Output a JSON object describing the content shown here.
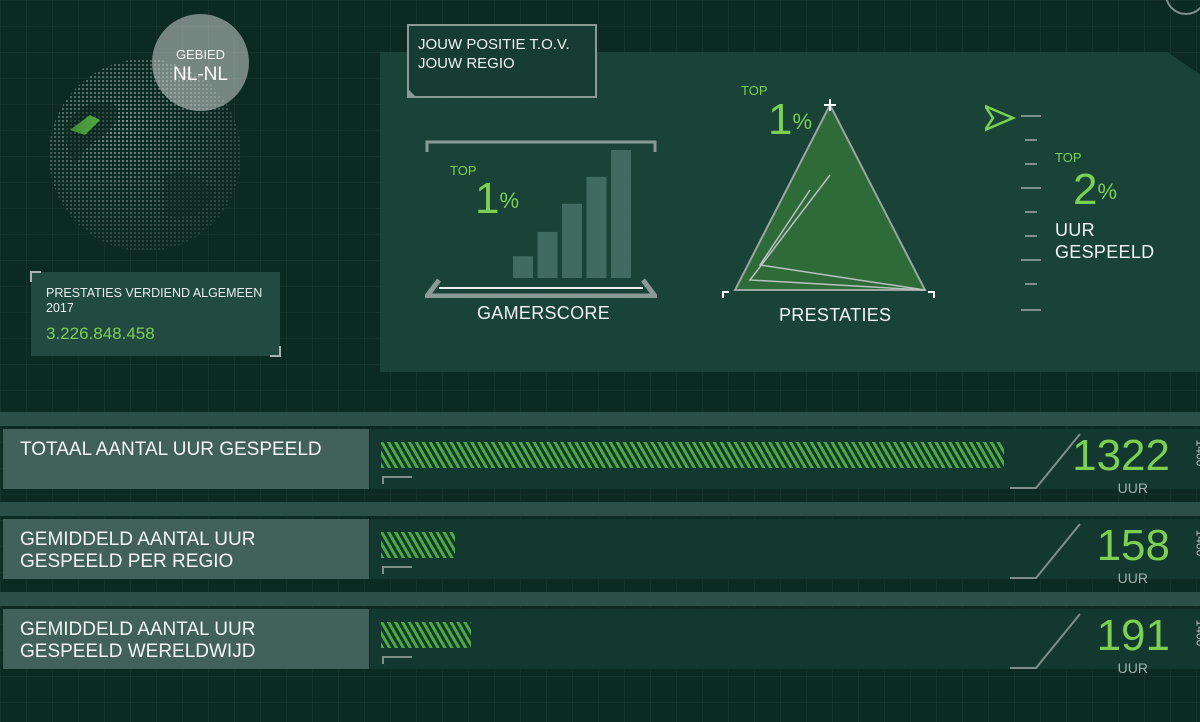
{
  "region": {
    "label": "GEBIED",
    "value": "NL-NL"
  },
  "achievements": {
    "label": "PRESTATIES VERDIEND ALGEMEEN 2017",
    "value": "3.226.848.458"
  },
  "position": {
    "title": "JOUW POSITIE T.O.V. JOUW REGIO"
  },
  "gamerscore": {
    "top_label": "TOP",
    "percent": "1",
    "percent_sign": "%",
    "label": "GAMERSCORE",
    "bar_levels": [
      0.17,
      0.36,
      0.58,
      0.79,
      1.0
    ]
  },
  "prestaties": {
    "top_label": "TOP",
    "percent": "1",
    "percent_sign": "%",
    "label": "PRESTATIES"
  },
  "hours": {
    "top_label": "TOP",
    "percent": "2",
    "percent_sign": "%",
    "label_line1": "UUR",
    "label_line2": "GESPEELD"
  },
  "rows": [
    {
      "label_line1": "TOTAAL AANTAL UUR GESPEELD",
      "label_line2": "",
      "value": "1322",
      "value_num": 1322,
      "unit": "UUR",
      "max": "1400"
    },
    {
      "label_line1": "GEMIDDELD AANTAL UUR",
      "label_line2": "GESPEELD PER REGIO",
      "value": "158",
      "value_num": 158,
      "unit": "UUR",
      "max": "1400"
    },
    {
      "label_line1": "GEMIDDELD AANTAL UUR",
      "label_line2": "GESPEELD WERELDWIJD",
      "value": "191",
      "value_num": 191,
      "unit": "UUR",
      "max": "1400"
    }
  ],
  "colors": {
    "accent": "#7ccf52",
    "background": "#0b2a22"
  }
}
